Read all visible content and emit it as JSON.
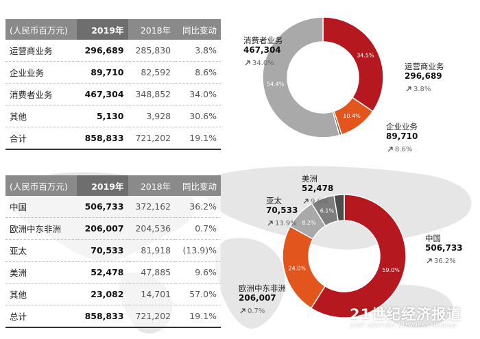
{
  "colors": {
    "red": "#b5191f",
    "orange": "#e2561e",
    "gray": "#a9a9a9",
    "dark_gray": "#4d4d4d",
    "mid_gray": "#7d7d7d",
    "header_bg": "#8a8a8a"
  },
  "table1": {
    "headers": [
      "(人民币百万元)",
      "2019年",
      "2018年",
      "同比变动"
    ],
    "rows": [
      [
        "运营商业务",
        "296,689",
        "285,830",
        "3.8%"
      ],
      [
        "企业业务",
        "89,710",
        "82,592",
        "8.6%"
      ],
      [
        "消费者业务",
        "467,304",
        "348,852",
        "34.0%"
      ],
      [
        "其他",
        "5,130",
        "3,928",
        "30.6%"
      ],
      [
        "合计",
        "858,833",
        "721,202",
        "19.1%"
      ]
    ]
  },
  "table2": {
    "headers": [
      "(人民币百万元)",
      "2019年",
      "2018年",
      "同比变动"
    ],
    "rows": [
      [
        "中国",
        "506,733",
        "372,162",
        "36.2%"
      ],
      [
        "欧洲中东非洲",
        "206,007",
        "204,536",
        "0.7%"
      ],
      [
        "亚太",
        "70,533",
        "81,918",
        "(13.9)%"
      ],
      [
        "美洲",
        "52,478",
        "47,885",
        "9.6%"
      ],
      [
        "其他",
        "23,082",
        "14,701",
        "57.0%"
      ],
      [
        "总计",
        "858,833",
        "721,202",
        "19.1%"
      ]
    ]
  },
  "chart_data": [
    {
      "type": "pie",
      "unit": "人民币百万元",
      "categories": [
        "运营商业务",
        "企业业务",
        "其他",
        "消费者业务"
      ],
      "values": [
        296689,
        89710,
        5130,
        467304
      ],
      "percent_labels": [
        "34.5%",
        "10.4%",
        "",
        "54.4%"
      ],
      "value_labels": [
        "296,689",
        "89,710",
        "",
        "467,304"
      ],
      "growth_labels": [
        "3.8%",
        "8.6%",
        "",
        "34.0%"
      ],
      "colors": [
        "#b5191f",
        "#e2561e",
        "#4d4d4d",
        "#a9a9a9"
      ]
    },
    {
      "type": "pie",
      "unit": "人民币百万元",
      "categories": [
        "中国",
        "欧洲中东非洲",
        "亚太",
        "美洲",
        "其他"
      ],
      "values": [
        506733,
        206007,
        70533,
        52478,
        23082
      ],
      "percent_labels": [
        "59.0%",
        "24.0%",
        "8.2%",
        "6.1%",
        ""
      ],
      "value_labels": [
        "506,733",
        "206,007",
        "70,533",
        "52,478",
        ""
      ],
      "growth_labels": [
        "36.2%",
        "0.7%",
        "13.9%",
        "9.6%",
        ""
      ],
      "colors": [
        "#b5191f",
        "#e2561e",
        "#a9a9a9",
        "#7d7d7d",
        "#4d4d4d"
      ]
    }
  ],
  "watermark": {
    "main": "21世纪经济报道",
    "sub": "21ST CENTURY BUSINESS HERALD"
  }
}
